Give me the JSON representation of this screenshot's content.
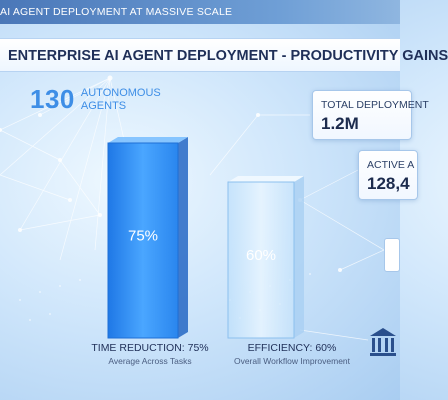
{
  "header": {
    "top_text": "AI AGENT DEPLOYMENT AT MASSIVE SCALE",
    "title": "ENTERPRISE AI AGENT DEPLOYMENT - PRODUCTIVITY GAINS"
  },
  "agents": {
    "count": "130",
    "label_line1": "AUTONOMOUS",
    "label_line2": "AGENTS"
  },
  "stats": {
    "total": {
      "label": "TOTAL DEPLOYMENT",
      "value": "1.2M"
    },
    "active": {
      "label": "ACTIVE A",
      "value": "128,4"
    }
  },
  "colors": {
    "bar1": "#2f8cf0",
    "bar2": "#cfe8fb",
    "accent": "#3e8ee6",
    "title": "#1f2f58"
  },
  "chart_data": {
    "type": "bar",
    "categories": [
      "Time Reduction",
      "Efficiency"
    ],
    "values": [
      75,
      60
    ],
    "ylim": [
      0,
      100
    ],
    "data_labels": [
      "75%",
      "60%"
    ],
    "captions": [
      {
        "line1": "TIME REDUCTION: 75%",
        "line2": "Average Across Tasks"
      },
      {
        "line1": "EFFICIENCY: 60%",
        "line2": "Overall Workflow Improvement"
      }
    ]
  }
}
